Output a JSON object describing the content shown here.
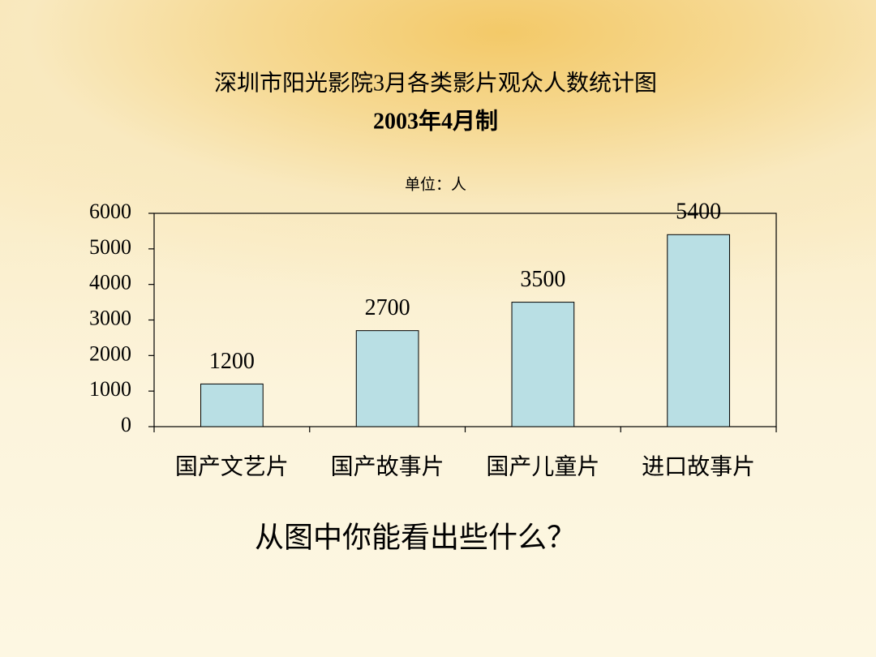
{
  "chart_data": {
    "type": "bar",
    "title": "深圳市阳光影院3月各类影片观众人数统计图",
    "subtitle": "2003年4月制",
    "unit_label": "单位：人",
    "categories": [
      "国产文艺片",
      "国产故事片",
      "国产儿童片",
      "进口故事片"
    ],
    "values": [
      1200,
      2700,
      3500,
      5400
    ],
    "color": "#b9dfe4",
    "ylim": [
      0,
      6000
    ],
    "yticks": [
      0,
      1000,
      2000,
      3000,
      4000,
      5000,
      6000
    ],
    "grid": false,
    "annotation": "从图中你能看出些什么？"
  }
}
